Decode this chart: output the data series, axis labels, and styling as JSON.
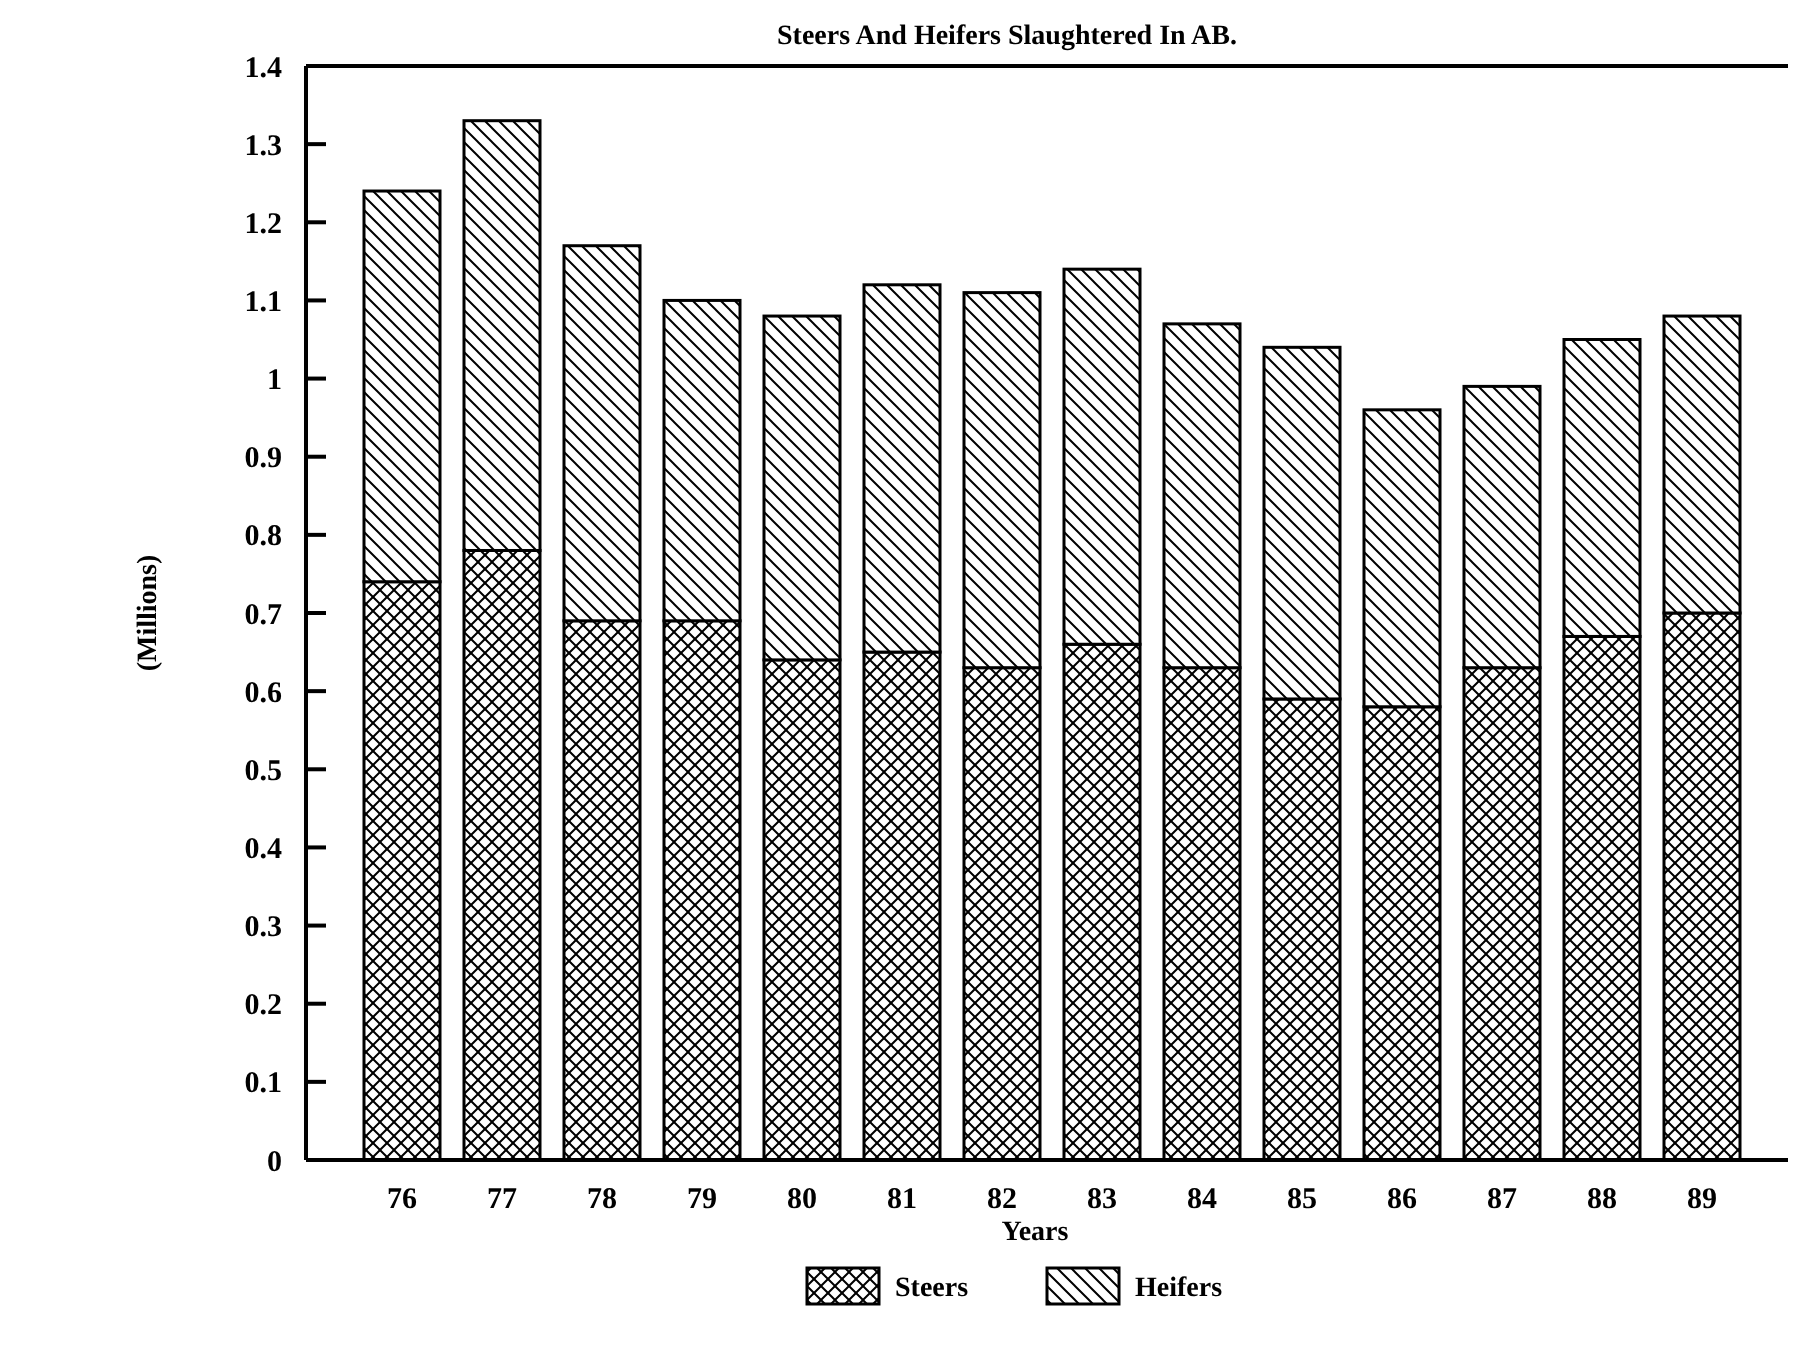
{
  "chart_data": {
    "type": "bar",
    "stacked": true,
    "title": "Steers And Heifers Slaughtered In AB.",
    "xlabel": "Years",
    "ylabel": "(Millions)",
    "categories": [
      "76",
      "77",
      "78",
      "79",
      "80",
      "81",
      "82",
      "83",
      "84",
      "85",
      "86",
      "87",
      "88",
      "89"
    ],
    "series": [
      {
        "name": "Steers",
        "color": "#000000",
        "values": [
          0.74,
          0.78,
          0.69,
          0.69,
          0.64,
          0.65,
          0.63,
          0.66,
          0.63,
          0.59,
          0.58,
          0.63,
          0.67,
          0.7
        ]
      },
      {
        "name": "Heifers",
        "color": "#000000",
        "values": [
          0.5,
          0.55,
          0.48,
          0.41,
          0.44,
          0.47,
          0.48,
          0.48,
          0.44,
          0.45,
          0.38,
          0.36,
          0.38,
          0.38
        ]
      }
    ],
    "ylim": [
      0,
      1.4
    ],
    "yticks": [
      0,
      0.1,
      0.2,
      0.3,
      0.4,
      0.5,
      0.6,
      0.7,
      0.8,
      0.9,
      1,
      1.1,
      1.2,
      1.3,
      1.4
    ],
    "grid": false,
    "legend": "bottom"
  }
}
